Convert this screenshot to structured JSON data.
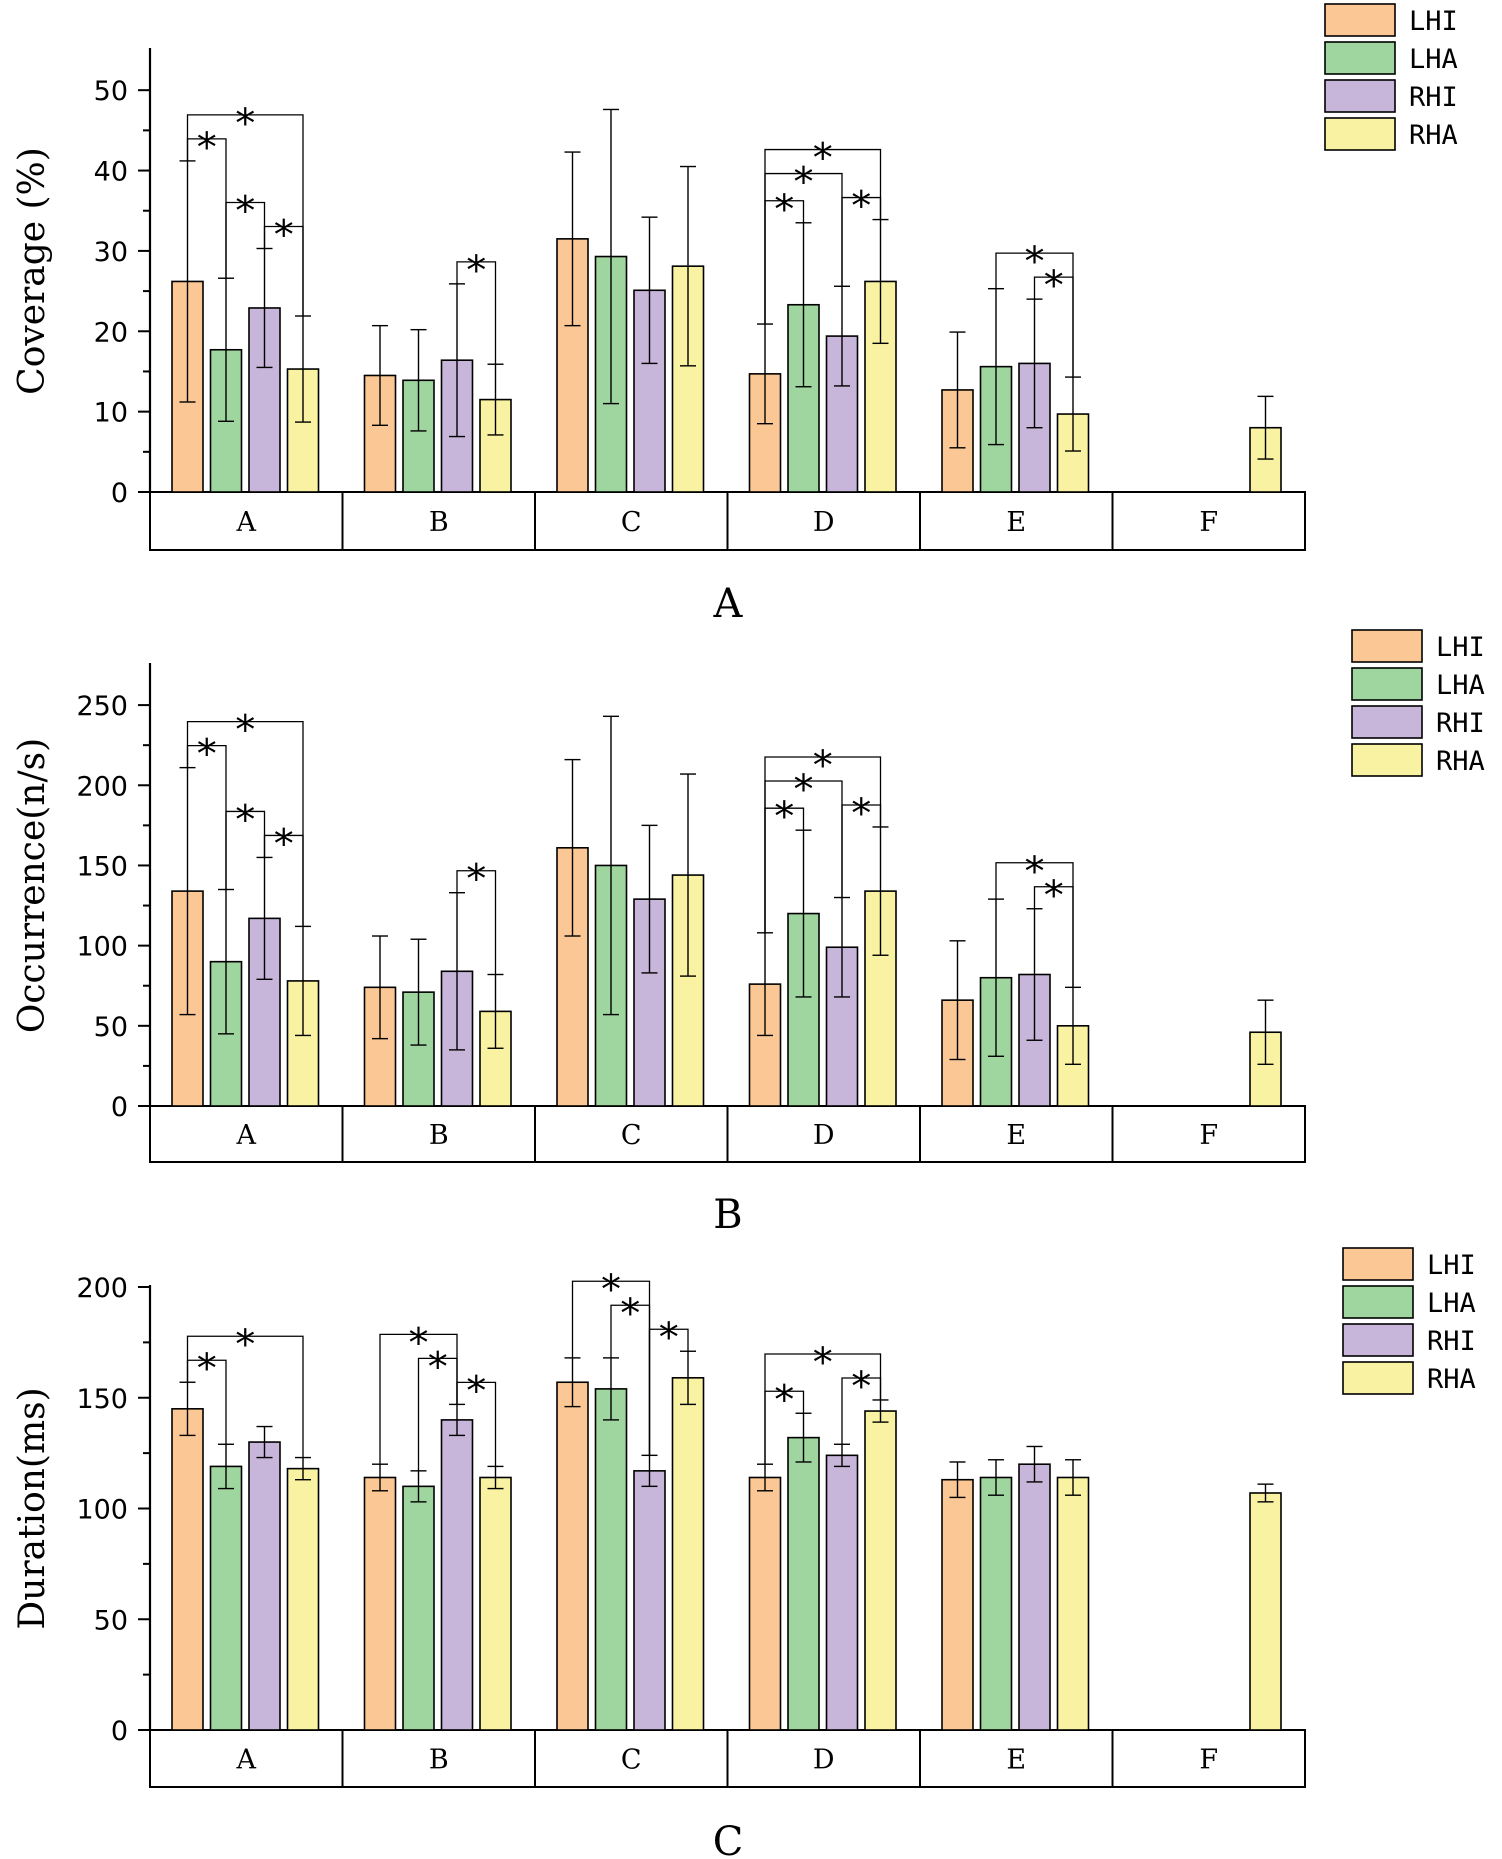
{
  "colors": {
    "LHI": "#fbc895",
    "LHA": "#9fd69f",
    "RHI": "#c8b5da",
    "RHA": "#f8f2a2"
  },
  "legend": [
    "LHI",
    "LHA",
    "RHI",
    "RHA"
  ],
  "chart_data": [
    {
      "type": "bar",
      "panel": "A",
      "ylabel": "Coverage (%)",
      "ylim": [
        0,
        55
      ],
      "yticks": [
        0,
        10,
        20,
        30,
        40,
        50
      ],
      "categories": [
        "A",
        "B",
        "C",
        "D",
        "E",
        "F"
      ],
      "series": [
        {
          "name": "LHI",
          "values": [
            26.2,
            14.5,
            31.5,
            14.7,
            12.7,
            null
          ],
          "errors": [
            15.0,
            6.2,
            10.8,
            6.2,
            7.2,
            null
          ]
        },
        {
          "name": "LHA",
          "values": [
            17.7,
            13.9,
            29.3,
            23.3,
            15.6,
            null
          ],
          "errors": [
            8.9,
            6.3,
            18.3,
            10.2,
            9.7,
            null
          ]
        },
        {
          "name": "RHI",
          "values": [
            22.9,
            16.4,
            25.1,
            19.4,
            16.0,
            null
          ],
          "errors": [
            7.4,
            9.5,
            9.1,
            6.2,
            8.0,
            null
          ]
        },
        {
          "name": "RHA",
          "values": [
            15.3,
            11.5,
            28.1,
            26.2,
            9.7,
            8.0
          ],
          "errors": [
            6.6,
            4.4,
            12.4,
            7.7,
            4.6,
            3.9
          ]
        }
      ],
      "significance": [
        {
          "category": "A",
          "from": "LHI",
          "to": "RHA",
          "label": "*"
        },
        {
          "category": "A",
          "from": "LHI",
          "to": "LHA",
          "label": "*"
        },
        {
          "category": "A",
          "from": "LHA",
          "to": "RHI",
          "label": "*"
        },
        {
          "category": "A",
          "from": "RHI",
          "to": "RHA",
          "label": "*"
        },
        {
          "category": "B",
          "from": "RHI",
          "to": "RHA",
          "label": "*"
        },
        {
          "category": "D",
          "from": "LHI",
          "to": "RHA",
          "label": "*"
        },
        {
          "category": "D",
          "from": "LHI",
          "to": "RHI",
          "label": "*"
        },
        {
          "category": "D",
          "from": "LHI",
          "to": "LHA",
          "label": "*"
        },
        {
          "category": "D",
          "from": "RHI",
          "to": "RHA",
          "label": "*"
        },
        {
          "category": "E",
          "from": "LHA",
          "to": "RHA",
          "label": "*"
        },
        {
          "category": "E",
          "from": "RHI",
          "to": "RHA",
          "label": "*"
        }
      ]
    },
    {
      "type": "bar",
      "panel": "B",
      "ylabel": "Occurrence(n/s)",
      "ylim": [
        0,
        275
      ],
      "yticks": [
        0,
        50,
        100,
        150,
        200,
        250
      ],
      "categories": [
        "A",
        "B",
        "C",
        "D",
        "E",
        "F"
      ],
      "series": [
        {
          "name": "LHI",
          "values": [
            134,
            74,
            161,
            76,
            66,
            null
          ],
          "errors": [
            77,
            32,
            55,
            32,
            37,
            null
          ]
        },
        {
          "name": "LHA",
          "values": [
            90,
            71,
            150,
            120,
            80,
            null
          ],
          "errors": [
            45,
            33,
            93,
            52,
            49,
            null
          ]
        },
        {
          "name": "RHI",
          "values": [
            117,
            84,
            129,
            99,
            82,
            null
          ],
          "errors": [
            38,
            49,
            46,
            31,
            41,
            null
          ]
        },
        {
          "name": "RHA",
          "values": [
            78,
            59,
            144,
            134,
            50,
            46
          ],
          "errors": [
            34,
            23,
            63,
            40,
            24,
            20
          ]
        }
      ],
      "significance": [
        {
          "category": "A",
          "from": "LHI",
          "to": "RHA",
          "label": "*"
        },
        {
          "category": "A",
          "from": "LHI",
          "to": "LHA",
          "label": "*"
        },
        {
          "category": "A",
          "from": "LHA",
          "to": "RHI",
          "label": "*"
        },
        {
          "category": "A",
          "from": "RHI",
          "to": "RHA",
          "label": "*"
        },
        {
          "category": "B",
          "from": "RHI",
          "to": "RHA",
          "label": "*"
        },
        {
          "category": "D",
          "from": "LHI",
          "to": "RHA",
          "label": "*"
        },
        {
          "category": "D",
          "from": "LHI",
          "to": "RHI",
          "label": "*"
        },
        {
          "category": "D",
          "from": "LHI",
          "to": "LHA",
          "label": "*"
        },
        {
          "category": "D",
          "from": "RHI",
          "to": "RHA",
          "label": "*"
        },
        {
          "category": "E",
          "from": "LHA",
          "to": "RHA",
          "label": "*"
        },
        {
          "category": "E",
          "from": "RHI",
          "to": "RHA",
          "label": "*"
        }
      ]
    },
    {
      "type": "bar",
      "panel": "C",
      "ylabel": "Duration(ms)",
      "ylim": [
        0,
        200
      ],
      "yticks": [
        0,
        50,
        100,
        150,
        200
      ],
      "categories": [
        "A",
        "B",
        "C",
        "D",
        "E",
        "F"
      ],
      "series": [
        {
          "name": "LHI",
          "values": [
            145,
            114,
            157,
            114,
            113,
            null
          ],
          "errors": [
            12,
            6,
            11,
            6,
            8,
            null
          ]
        },
        {
          "name": "LHA",
          "values": [
            119,
            110,
            154,
            132,
            114,
            null
          ],
          "errors": [
            10,
            7,
            14,
            11,
            8,
            null
          ]
        },
        {
          "name": "RHI",
          "values": [
            130,
            140,
            117,
            124,
            120,
            null
          ],
          "errors": [
            7,
            7,
            7,
            5,
            8,
            null
          ]
        },
        {
          "name": "RHA",
          "values": [
            118,
            114,
            159,
            144,
            114,
            107
          ],
          "errors": [
            5,
            5,
            12,
            5,
            8,
            4
          ]
        }
      ],
      "significance": [
        {
          "category": "A",
          "from": "LHI",
          "to": "RHA",
          "label": "*"
        },
        {
          "category": "A",
          "from": "LHI",
          "to": "LHA",
          "label": "*"
        },
        {
          "category": "B",
          "from": "LHI",
          "to": "RHI",
          "label": "*"
        },
        {
          "category": "B",
          "from": "LHA",
          "to": "RHI",
          "label": "*"
        },
        {
          "category": "B",
          "from": "RHI",
          "to": "RHA",
          "label": "*"
        },
        {
          "category": "C",
          "from": "LHI",
          "to": "RHI",
          "label": "*"
        },
        {
          "category": "C",
          "from": "LHA",
          "to": "RHI",
          "label": "*"
        },
        {
          "category": "C",
          "from": "RHI",
          "to": "RHA",
          "label": "*"
        },
        {
          "category": "D",
          "from": "LHI",
          "to": "RHA",
          "label": "*"
        },
        {
          "category": "D",
          "from": "LHI",
          "to": "LHA",
          "label": "*"
        },
        {
          "category": "D",
          "from": "RHI",
          "to": "RHA",
          "label": "*"
        }
      ]
    }
  ]
}
